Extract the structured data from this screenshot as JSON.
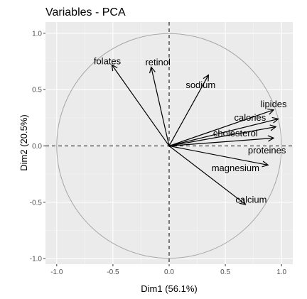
{
  "chart_data": {
    "type": "scatter",
    "title": "Variables - PCA",
    "xlabel": "Dim1 (56.1%)",
    "ylabel": "Dim2 (20.5%)",
    "xlim": [
      -1.1,
      1.1
    ],
    "ylim": [
      -1.05,
      1.1
    ],
    "xticks": [
      -1.0,
      -0.5,
      0.0,
      0.5,
      1.0
    ],
    "yticks": [
      -1.0,
      -0.5,
      0.0,
      0.5,
      1.0
    ],
    "xtick_labels": [
      "-1.0",
      "-0.5",
      "0.0",
      "0.5",
      "1.0"
    ],
    "ytick_labels": [
      "-1.0",
      "-0.5",
      "0.0",
      "0.5",
      "1.0"
    ],
    "grid": true,
    "unit_circle": true,
    "variables": [
      {
        "name": "folates",
        "x": -0.51,
        "y": 0.72
      },
      {
        "name": "retinol",
        "x": -0.16,
        "y": 0.7
      },
      {
        "name": "sodium",
        "x": 0.35,
        "y": 0.63
      },
      {
        "name": "lipides",
        "x": 0.93,
        "y": 0.32
      },
      {
        "name": "calories",
        "x": 0.97,
        "y": 0.24
      },
      {
        "name": "cholesterol",
        "x": 0.95,
        "y": 0.17
      },
      {
        "name": "proteines",
        "x": 0.93,
        "y": 0.07
      },
      {
        "name": "magnesium",
        "x": 0.88,
        "y": -0.17
      },
      {
        "name": "calcium",
        "x": 0.68,
        "y": -0.52
      }
    ]
  },
  "label_offsets_data": {
    "folates": [
      -0.55,
      0.75
    ],
    "retinol": [
      -0.1,
      0.74
    ],
    "sodium": [
      0.28,
      0.54
    ],
    "lipides": [
      0.93,
      0.37
    ],
    "calories": [
      0.72,
      0.25
    ],
    "cholesterol": [
      0.59,
      0.11
    ],
    "proteines": [
      0.87,
      -0.04
    ],
    "magnesium": [
      0.59,
      -0.2
    ],
    "calcium": [
      0.73,
      -0.48
    ]
  },
  "colors": {
    "panel": "#ebebeb",
    "grid_major": "#ffffff",
    "arrow": "#000000",
    "circle": "#a6a6a6"
  }
}
